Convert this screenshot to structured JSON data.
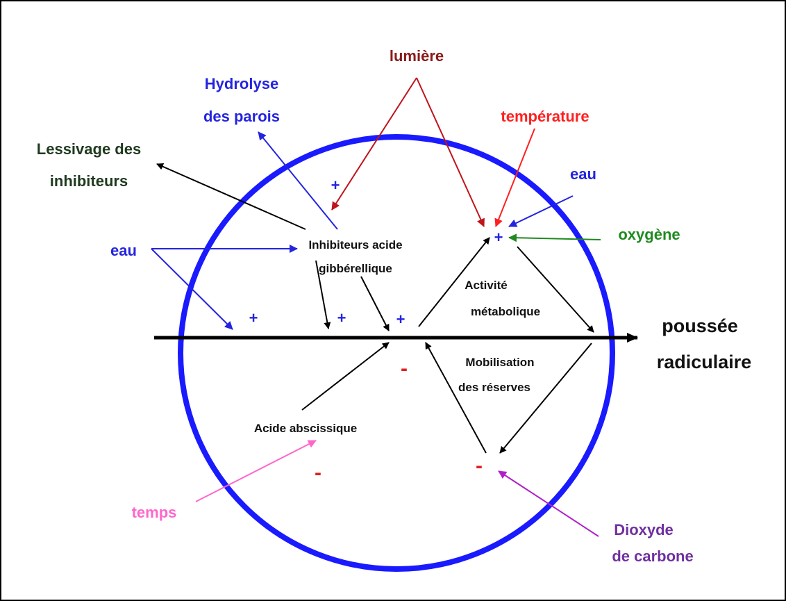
{
  "labels": {
    "lumiere": "lumière",
    "hydrolyse": [
      "Hydrolyse",
      "des parois"
    ],
    "temperature": "température",
    "lessivage": [
      "Lessivage des",
      "inhibiteurs"
    ],
    "eau-right": "eau",
    "oxygene": "oxygène",
    "eau-left": "eau",
    "inhibiteurs": [
      "Inhibiteurs  acide",
      "gibbérellique"
    ],
    "activite": [
      "Activité",
      "métabolique"
    ],
    "poussee": [
      "poussée",
      "radiculaire"
    ],
    "mobilisation": [
      "Mobilisation",
      "des réserves"
    ],
    "acide-abscissique": "Acide abscissique",
    "temps": "temps",
    "dioxyde": [
      "Dioxyde",
      "de carbone"
    ]
  },
  "signs": [
    "+",
    "+",
    "+",
    "+",
    "+",
    "-",
    "-",
    "-"
  ]
}
